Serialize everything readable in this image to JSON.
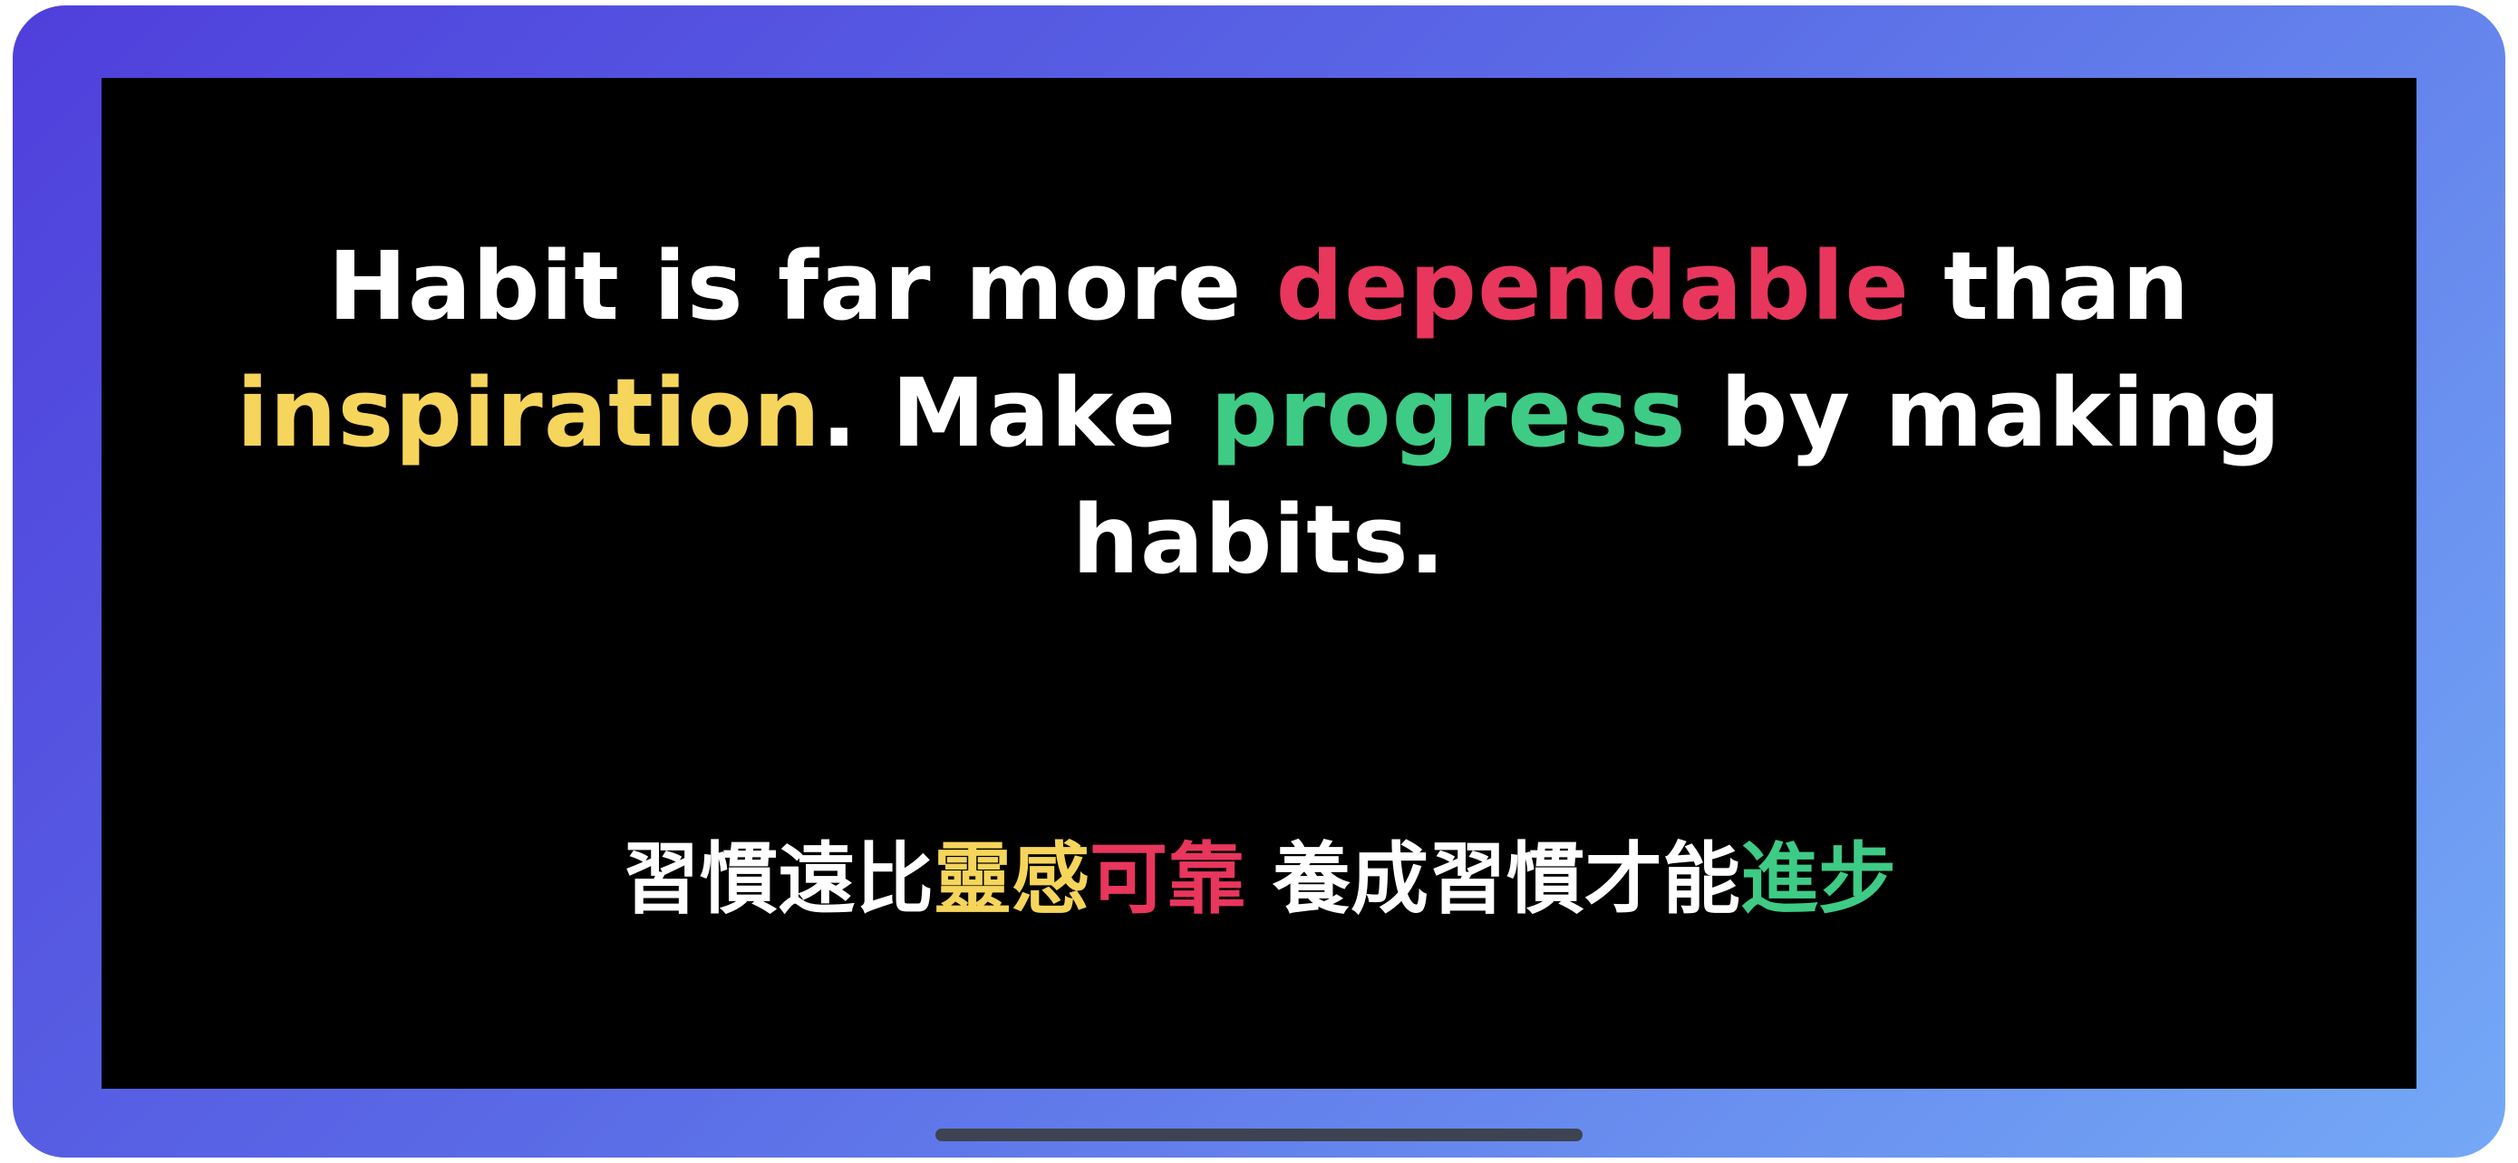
{
  "colors": {
    "text": "#ffffff",
    "red": "#e8365d",
    "yellow": "#f6d55c",
    "green": "#3ecb85",
    "screen_bg": "#000000"
  },
  "quote_en": {
    "part1": "Habit is far more ",
    "word_dependable": "dependable",
    "part2": " than ",
    "word_inspiration": "inspiration",
    "part3": ". Make ",
    "word_progress": "progress",
    "part4": " by making habits."
  },
  "quote_zh": {
    "part1": "習慣遠比",
    "word_inspiration": "靈感",
    "word_dependable": "可靠",
    "part2": " 養成習慣才能",
    "word_progress": "進步"
  }
}
